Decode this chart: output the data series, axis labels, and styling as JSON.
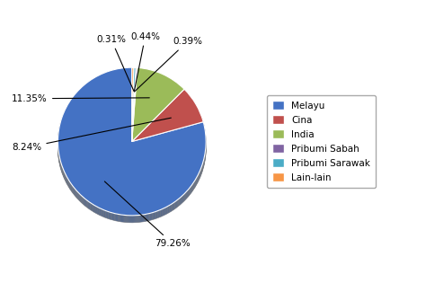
{
  "labels": [
    "Melayu",
    "Cina",
    "India",
    "Pribumi Sabah",
    "Pribumi Sarawak",
    "Lain-lain"
  ],
  "values": [
    79.26,
    8.24,
    11.35,
    0.31,
    0.44,
    0.39
  ],
  "colors": [
    "#4472C4",
    "#C0504D",
    "#9BBB59",
    "#8064A2",
    "#4BACC6",
    "#F79646"
  ],
  "pct_labels": [
    "79.26%",
    "8.24%",
    "11.35%",
    "0.31%",
    "0.44%",
    "0.39%"
  ],
  "background": "#ffffff",
  "startangle": 90,
  "legend_labels": [
    "Melayu",
    "Cina",
    "India",
    "Pribumi Sabah",
    "Pribumi Sarawak",
    "Lain-lain"
  ]
}
